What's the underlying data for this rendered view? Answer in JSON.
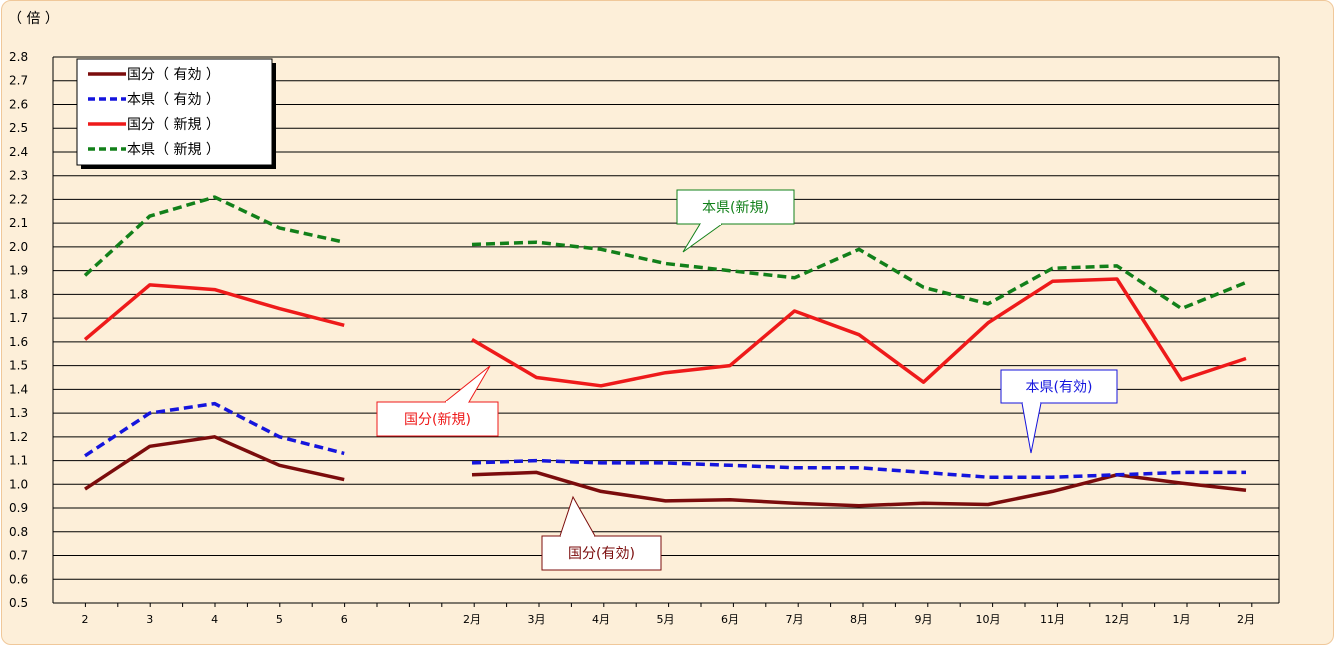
{
  "chart_data": {
    "type": "line",
    "unit_label": "（ 倍 ）",
    "ylim": [
      0.5,
      2.8
    ],
    "ytick_step": 0.1,
    "grid": true,
    "legend_position": "top-left",
    "x_groups": [
      {
        "categories": [
          "2",
          "3",
          "4",
          "5",
          "6"
        ]
      },
      {
        "categories": [
          "2月",
          "3月",
          "4月",
          "5月",
          "6月",
          "7月",
          "8月",
          "9月",
          "10月",
          "11月",
          "12月",
          "1月",
          "2月"
        ]
      }
    ],
    "series": [
      {
        "name": "国分（ 有効 ）",
        "color": "#7b0c0c",
        "dash": "solid",
        "values": [
          [
            0.98,
            1.16,
            1.2,
            1.08,
            1.02
          ],
          [
            1.04,
            1.05,
            0.97,
            0.93,
            0.935,
            0.92,
            0.91,
            0.92,
            0.915,
            0.97,
            1.04,
            1.005,
            0.975
          ]
        ]
      },
      {
        "name": "本県（ 有効 ）",
        "color": "#1515dd",
        "dash": "dashed",
        "values": [
          [
            1.12,
            1.3,
            1.34,
            1.2,
            1.13
          ],
          [
            1.09,
            1.1,
            1.09,
            1.09,
            1.08,
            1.07,
            1.07,
            1.05,
            1.03,
            1.03,
            1.04,
            1.05,
            1.05
          ]
        ]
      },
      {
        "name": "国分（ 新規 ）",
        "color": "#ee1a1a",
        "dash": "solid",
        "values": [
          [
            1.61,
            1.84,
            1.82,
            1.74,
            1.67
          ],
          [
            1.61,
            1.45,
            1.415,
            1.47,
            1.5,
            1.73,
            1.63,
            1.43,
            1.68,
            1.855,
            1.865,
            1.44,
            1.53
          ]
        ]
      },
      {
        "name": "本県（ 新規 ）",
        "color": "#12801a",
        "dash": "dashed",
        "values": [
          [
            1.88,
            2.13,
            2.21,
            2.08,
            2.02
          ],
          [
            2.01,
            2.02,
            1.99,
            1.93,
            1.9,
            1.87,
            1.99,
            1.83,
            1.76,
            1.91,
            1.92,
            1.74,
            1.85
          ]
        ]
      }
    ],
    "annotations": [
      {
        "text": "本県(新規)",
        "color": "#12801a"
      },
      {
        "text": "国分(新規)",
        "color": "#ee1a1a"
      },
      {
        "text": "本県(有効)",
        "color": "#1515dd"
      },
      {
        "text": "国分(有効)",
        "color": "#7b0c0c"
      }
    ]
  }
}
